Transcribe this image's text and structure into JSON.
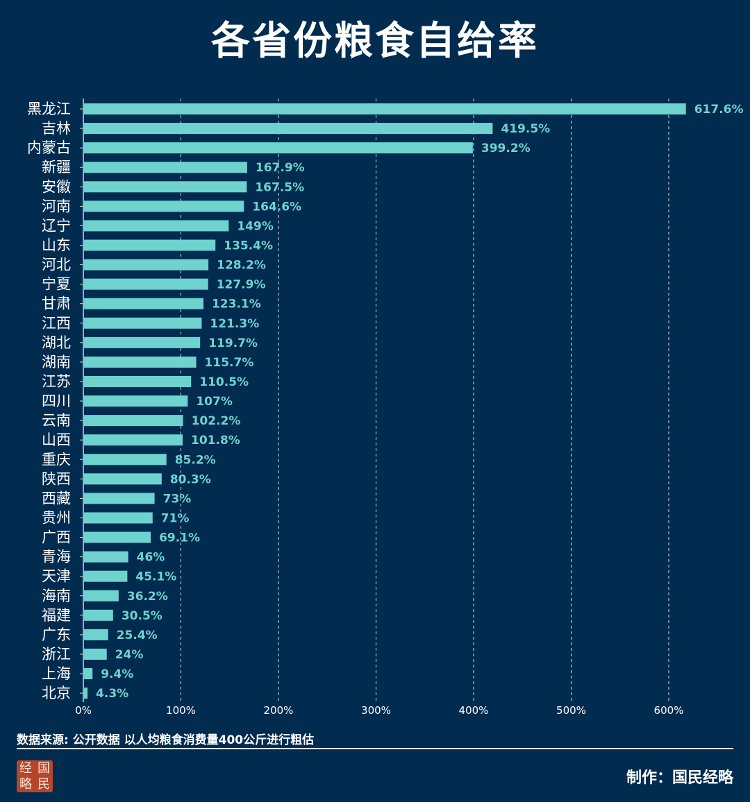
{
  "page": {
    "title": "各省份粮食自给率"
  },
  "chart_data": {
    "type": "bar",
    "orientation": "horizontal",
    "title": "各省份粮食自给率",
    "categories": [
      "黑龙江",
      "吉林",
      "内蒙古",
      "新疆",
      "安徽",
      "河南",
      "辽宁",
      "山东",
      "河北",
      "宁夏",
      "甘肃",
      "江西",
      "湖北",
      "湖南",
      "江苏",
      "四川",
      "云南",
      "山西",
      "重庆",
      "陕西",
      "西藏",
      "贵州",
      "广西",
      "青海",
      "天津",
      "海南",
      "福建",
      "广东",
      "浙江",
      "上海",
      "北京"
    ],
    "values": [
      617.6,
      419.5,
      399.2,
      167.9,
      167.5,
      164.6,
      149,
      135.4,
      128.2,
      127.9,
      123.1,
      121.3,
      119.7,
      115.7,
      110.5,
      107,
      102.2,
      101.8,
      85.2,
      80.3,
      73,
      71,
      69.1,
      46,
      45.1,
      36.2,
      30.5,
      25.4,
      24,
      9.4,
      4.3
    ],
    "value_labels": [
      "617.6%",
      "419.5%",
      "399.2%",
      "167.9%",
      "167.5%",
      "164.6%",
      "149%",
      "135.4%",
      "128.2%",
      "127.9%",
      "123.1%",
      "121.3%",
      "119.7%",
      "115.7%",
      "110.5%",
      "107%",
      "102.2%",
      "101.8%",
      "85.2%",
      "80.3%",
      "73%",
      "71%",
      "69.1%",
      "46%",
      "45.1%",
      "36.2%",
      "30.5%",
      "25.4%",
      "24%",
      "9.4%",
      "4.3%"
    ],
    "xlim": [
      0,
      600
    ],
    "xticks": [
      0,
      100,
      200,
      300,
      400,
      500,
      600
    ],
    "xtick_labels": [
      "0%",
      "100%",
      "200%",
      "300%",
      "400%",
      "500%",
      "600%"
    ],
    "xlabel": "",
    "ylabel": "",
    "grid": "vertical dashed"
  },
  "footer": {
    "source": "数据来源: 公开数据 以人均粮食消费量400公斤进行粗估",
    "credit": "制作：国民经略",
    "logo_chars": [
      "经",
      "国",
      "略",
      "民"
    ]
  },
  "colors": {
    "background": "#022b50",
    "bar": "#6ed3cf",
    "value_label": "#6ed3cf",
    "text": "#ffffff"
  }
}
